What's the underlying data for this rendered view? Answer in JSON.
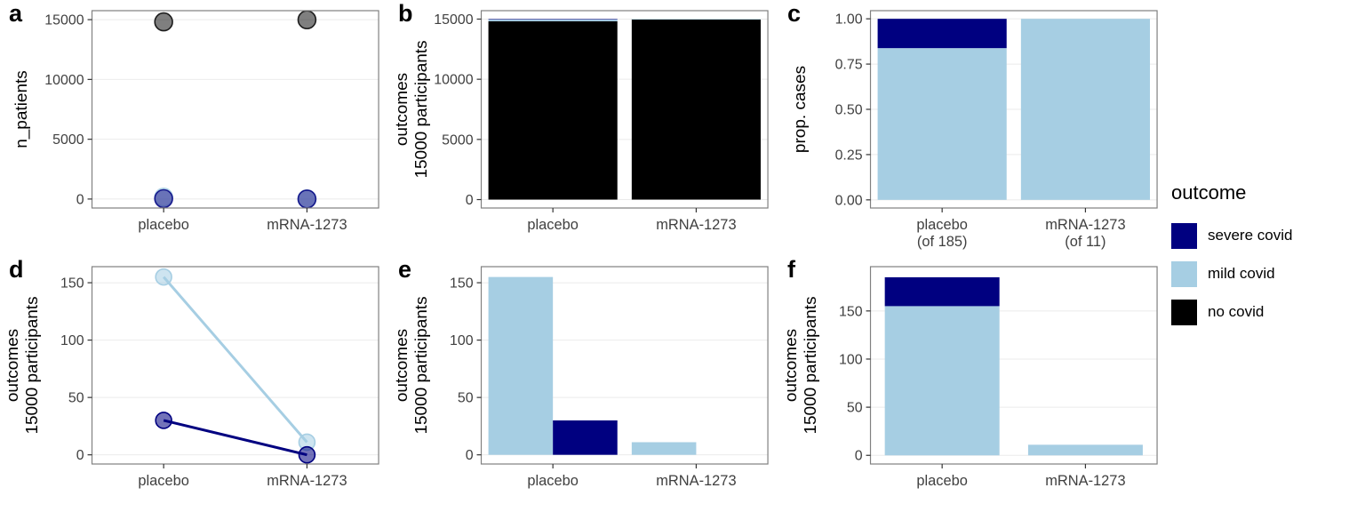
{
  "colors": {
    "severe_covid": "#000080",
    "mild_covid": "#A6CEE3",
    "no_covid": "#000000",
    "axis_text": "#404040",
    "axis_title": "#000000",
    "panel_border": "#808080",
    "grid": "#ebebeb",
    "background": "#ffffff"
  },
  "legend": {
    "title": "outcome",
    "items": [
      {
        "label": "severe covid",
        "color": "#000080"
      },
      {
        "label": "mild covid",
        "color": "#A6CEE3"
      },
      {
        "label": "no covid",
        "color": "#000000"
      }
    ]
  },
  "chart_data": [
    {
      "tag": "a",
      "type": "point",
      "ylabel_lines": [
        "n_patients"
      ],
      "categories": [
        [
          "placebo"
        ],
        [
          "mRNA-1273"
        ]
      ],
      "yticks": [
        0,
        5000,
        10000,
        15000
      ],
      "ytick_labels": [
        "0",
        "5000",
        "10000",
        "15000"
      ],
      "ydomain": [
        -750,
        15750
      ],
      "series": [
        {
          "name": "no covid",
          "color": "#000000",
          "values": [
            14815,
            14989
          ]
        },
        {
          "name": "mild covid",
          "color": "#A6CEE3",
          "values": [
            155,
            11
          ]
        },
        {
          "name": "severe covid",
          "color": "#000080",
          "values": [
            30,
            0
          ]
        }
      ]
    },
    {
      "tag": "b",
      "type": "stack",
      "ylabel_lines": [
        "outcomes",
        "15000 participants"
      ],
      "categories": [
        [
          "placebo"
        ],
        [
          "mRNA-1273"
        ]
      ],
      "yticks": [
        0,
        5000,
        10000,
        15000
      ],
      "ytick_labels": [
        "0",
        "5000",
        "10000",
        "15000"
      ],
      "ydomain": [
        -700,
        15700
      ],
      "bar_width": 0.9,
      "series": [
        {
          "name": "no covid",
          "color": "#000000",
          "values": [
            14815,
            14989
          ]
        },
        {
          "name": "mild covid",
          "color": "#A6CEE3",
          "values": [
            155,
            11
          ]
        },
        {
          "name": "severe covid",
          "color": "#000080",
          "values": [
            30,
            0
          ]
        }
      ]
    },
    {
      "tag": "c",
      "type": "stack",
      "ylabel_lines": [
        "prop. cases"
      ],
      "categories": [
        [
          "placebo",
          "(of 185)"
        ],
        [
          "mRNA-1273",
          "(of 11)"
        ]
      ],
      "yticks": [
        0,
        0.25,
        0.5,
        0.75,
        1
      ],
      "ytick_labels": [
        "0.00",
        "0.25",
        "0.50",
        "0.75",
        "1.00"
      ],
      "ydomain": [
        -0.045,
        1.045
      ],
      "bar_width": 0.9,
      "series": [
        {
          "name": "mild covid",
          "color": "#A6CEE3",
          "values": [
            0.838,
            1.0
          ]
        },
        {
          "name": "severe covid",
          "color": "#000080",
          "values": [
            0.162,
            0
          ]
        }
      ]
    },
    {
      "tag": "d",
      "type": "line",
      "ylabel_lines": [
        "outcomes",
        "15000 participants"
      ],
      "categories": [
        [
          "placebo"
        ],
        [
          "mRNA-1273"
        ]
      ],
      "yticks": [
        0,
        50,
        100,
        150
      ],
      "ytick_labels": [
        "0",
        "50",
        "100",
        "150"
      ],
      "ydomain": [
        -8,
        164
      ],
      "series": [
        {
          "name": "mild covid",
          "color": "#A6CEE3",
          "values": [
            155,
            11
          ]
        },
        {
          "name": "severe covid",
          "color": "#000080",
          "values": [
            30,
            0
          ]
        }
      ]
    },
    {
      "tag": "e",
      "type": "dodge",
      "ylabel_lines": [
        "outcomes",
        "15000 participants"
      ],
      "categories": [
        [
          "placebo"
        ],
        [
          "mRNA-1273"
        ]
      ],
      "yticks": [
        0,
        50,
        100,
        150
      ],
      "ytick_labels": [
        "0",
        "50",
        "100",
        "150"
      ],
      "ydomain": [
        -8,
        164
      ],
      "bar_width": 0.9,
      "series": [
        {
          "name": "mild covid",
          "color": "#A6CEE3",
          "values": [
            155,
            11
          ]
        },
        {
          "name": "severe covid",
          "color": "#000080",
          "values": [
            30,
            0
          ]
        }
      ]
    },
    {
      "tag": "f",
      "type": "stack",
      "ylabel_lines": [
        "outcomes",
        "15000 participants"
      ],
      "categories": [
        [
          "placebo"
        ],
        [
          "mRNA-1273"
        ]
      ],
      "yticks": [
        0,
        50,
        100,
        150
      ],
      "ytick_labels": [
        "0",
        "50",
        "100",
        "150"
      ],
      "ydomain": [
        -9,
        196
      ],
      "bar_width": 0.8,
      "series": [
        {
          "name": "mild covid",
          "color": "#A6CEE3",
          "values": [
            155,
            11
          ]
        },
        {
          "name": "severe covid",
          "color": "#000080",
          "values": [
            30,
            0
          ]
        }
      ]
    }
  ]
}
